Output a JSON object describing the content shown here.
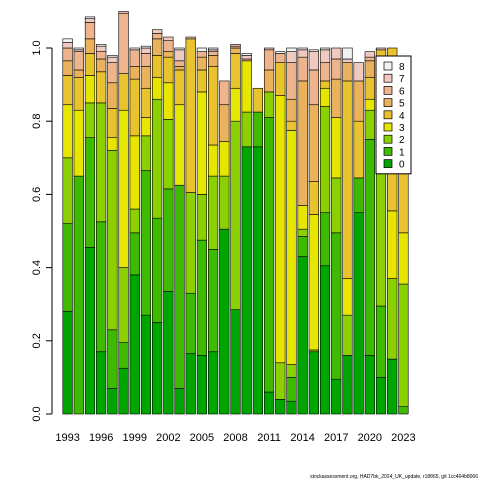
{
  "chart_data": {
    "type": "bar",
    "stacked": true,
    "years": [
      1993,
      1994,
      1995,
      1996,
      1997,
      1998,
      1999,
      2000,
      2001,
      2002,
      2003,
      2004,
      2005,
      2006,
      2007,
      2008,
      2009,
      2010,
      2011,
      2012,
      2013,
      2014,
      2015,
      2016,
      2017,
      2018,
      2019,
      2020,
      2021,
      2022,
      2023
    ],
    "x_tick_labels": [
      "1993",
      "1996",
      "1999",
      "2002",
      "2005",
      "2008",
      "2011",
      "2014",
      "2017",
      "2020",
      "2023"
    ],
    "y_tick_labels": [
      "0.0",
      "0.2",
      "0.4",
      "0.6",
      "0.8",
      "1.0"
    ],
    "ylim": [
      0,
      1
    ],
    "series": [
      {
        "name": "0",
        "color": "#00A600",
        "values": [
          0.28,
          0,
          0.455,
          0.17,
          0.07,
          0.125,
          0.38,
          0.27,
          0.25,
          0.335,
          0.07,
          0.165,
          0.16,
          0.17,
          0.505,
          0.285,
          0.73,
          0.73,
          0.06,
          0.04,
          0.035,
          0.43,
          0.17,
          0.405,
          0.095,
          0.16,
          0.55,
          0.16,
          0.1,
          0.15,
          0
        ]
      },
      {
        "name": "1",
        "color": "#3EBB00",
        "values": [
          0.24,
          0.65,
          0.3,
          0.355,
          0.16,
          0.07,
          0.115,
          0.395,
          0.285,
          0.28,
          0.555,
          0.165,
          0.315,
          0.28,
          0,
          0,
          0,
          0.095,
          0.75,
          0,
          0.065,
          0.055,
          0,
          0.145,
          0.4,
          0,
          0.095,
          0.59,
          0.195,
          0,
          0.02
        ]
      },
      {
        "name": "2",
        "color": "#8BD000",
        "values": [
          0.18,
          0,
          0.095,
          0.325,
          0.49,
          0.205,
          0.065,
          0.095,
          0.325,
          0.19,
          0,
          0.275,
          0.125,
          0.2,
          0.145,
          0.515,
          0.095,
          0,
          0.07,
          0.1,
          0.035,
          0.02,
          0.005,
          0.29,
          0.15,
          0.11,
          0,
          0.08,
          0.37,
          0.22,
          0.335
        ]
      },
      {
        "name": "3",
        "color": "#E6E600",
        "values": [
          0.145,
          0.18,
          0.075,
          0.0,
          0.035,
          0.43,
          0.2,
          0.05,
          0.06,
          0.1,
          0.22,
          0,
          0.28,
          0.085,
          0.095,
          0.09,
          0.14,
          0,
          0,
          0.73,
          0.64,
          0.065,
          0.37,
          0.05,
          0.165,
          0.1,
          0,
          0.03,
          0.0,
          0.185,
          0.14
        ]
      },
      {
        "name": "4",
        "color": "#E8C32E",
        "values": [
          0.08,
          0.09,
          0.06,
          0.085,
          0.08,
          0.1,
          0.155,
          0.08,
          0.06,
          0.07,
          0.095,
          0.42,
          0.06,
          0.215,
          0,
          0.095,
          0.0,
          0.065,
          0,
          0.09,
          0.025,
          0,
          0.09,
          0.02,
          0,
          0.54,
          0.155,
          0.06,
          0.33,
          0.445,
          0.44
        ]
      },
      {
        "name": "5",
        "color": "#EBB25E",
        "values": [
          0.04,
          0.02,
          0.04,
          0.035,
          0.07,
          0,
          0.035,
          0.06,
          0.045,
          0.015,
          0.01,
          0.0,
          0.035,
          0.03,
          0.1,
          0.015,
          0,
          0,
          0.06,
          0.0,
          0.06,
          0.34,
          0.21,
          0,
          0.105,
          0.05,
          0.11,
          0.045,
          0,
          0,
          0.035
        ]
      },
      {
        "name": "6",
        "color": "#EDB48E",
        "values": [
          0.035,
          0.05,
          0.045,
          0.02,
          0.055,
          0.165,
          0.045,
          0.035,
          0.015,
          0.03,
          0.015,
          0.0,
          0.015,
          0.01,
          0.065,
          0.005,
          0.005,
          0.0,
          0.055,
          0.025,
          0.1,
          0.065,
          0.095,
          0.05,
          0.055,
          0.0,
          0,
          0.01,
          0,
          0,
          0
        ]
      },
      {
        "name": "7",
        "color": "#F0C9C0",
        "values": [
          0.015,
          0.005,
          0.01,
          0.015,
          0.015,
          0.005,
          0.0,
          0.015,
          0.01,
          0.01,
          0.03,
          0.005,
          0.0,
          0.005,
          0.0,
          0.005,
          0.01,
          0.0,
          0.005,
          0.0,
          0.03,
          0.02,
          0.05,
          0.035,
          0.03,
          0.01,
          0.05,
          0.015,
          0.005,
          0,
          0
        ]
      },
      {
        "name": "8",
        "color": "#F2F2F2",
        "values": [
          0.01,
          0.005,
          0.005,
          0.005,
          0.005,
          0.0,
          0.005,
          0.005,
          0.0,
          0.0,
          0.005,
          0.0,
          0.01,
          0.005,
          0.0,
          0.0,
          0.005,
          0.0,
          0.0,
          0.005,
          0.01,
          0.005,
          0.005,
          0.005,
          0.0,
          0.03,
          0.0,
          0.0,
          0.0,
          0,
          0
        ]
      }
    ],
    "legend": {
      "position": "right",
      "order": [
        "8",
        "7",
        "6",
        "5",
        "4",
        "3",
        "2",
        "1",
        "0"
      ]
    }
  },
  "source_note": "stockassessment.org, HAD7bk_2024_UK_update, r18865, git 1cc464b8066"
}
